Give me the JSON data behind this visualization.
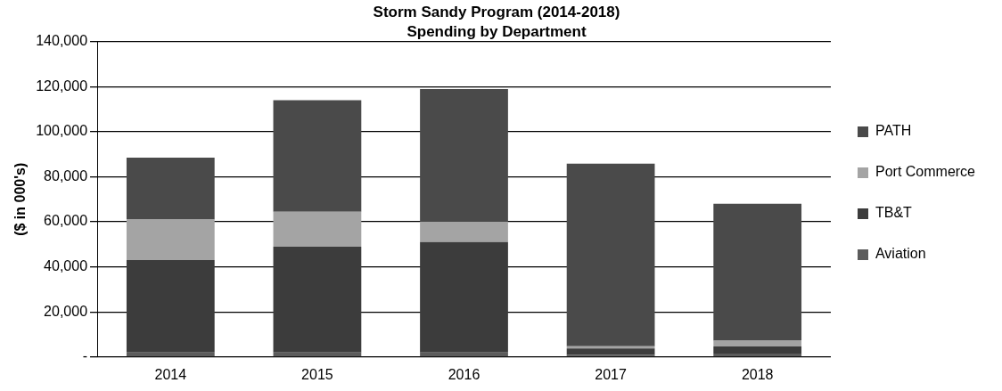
{
  "chart_data": {
    "type": "bar",
    "title": "Storm Sandy Program (2014-2018)",
    "subtitle": "Spending by Department",
    "ylabel": "($ in 000's)",
    "categories": [
      "2014",
      "2015",
      "2016",
      "2017",
      "2018"
    ],
    "stacked": true,
    "series": [
      {
        "name": "Aviation",
        "color": "#5c5c5c",
        "values": [
          2000,
          2000,
          2000,
          1000,
          1500
        ]
      },
      {
        "name": "TB&T",
        "color": "#3c3c3c",
        "values": [
          41000,
          47000,
          49000,
          2800,
          3200
        ]
      },
      {
        "name": "Port Commerce",
        "color": "#a4a4a4",
        "values": [
          18000,
          15500,
          9000,
          1000,
          2500
        ]
      },
      {
        "name": "PATH",
        "color": "#4a4a4a",
        "values": [
          27500,
          49500,
          59000,
          81000,
          60800
        ]
      }
    ],
    "ylim": [
      0,
      140000
    ],
    "yticks": [
      {
        "value": 0,
        "label": "-"
      },
      {
        "value": 20000,
        "label": "20,000"
      },
      {
        "value": 40000,
        "label": "40,000"
      },
      {
        "value": 60000,
        "label": "60,000"
      },
      {
        "value": 80000,
        "label": "80,000"
      },
      {
        "value": 100000,
        "label": "100,000"
      },
      {
        "value": 120000,
        "label": "120,000"
      },
      {
        "value": 140000,
        "label": "140,000"
      }
    ],
    "grid": "y",
    "legend": "right"
  }
}
